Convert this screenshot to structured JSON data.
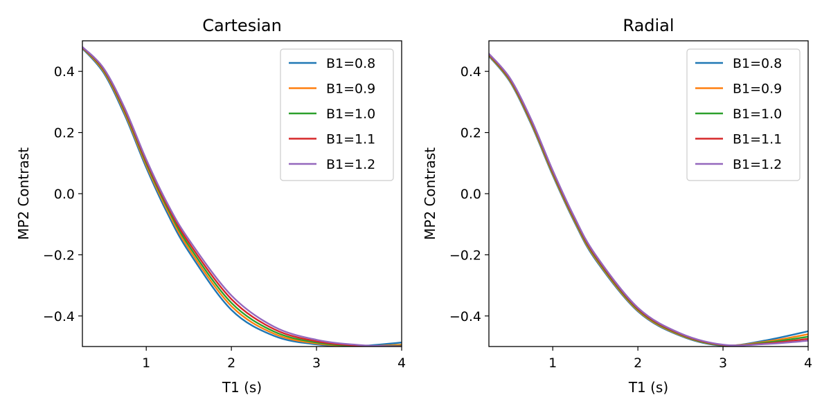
{
  "chart_data": [
    {
      "type": "line",
      "title": "Cartesian",
      "xlabel": "T1 (s)",
      "ylabel": "MP2 Contrast",
      "xlim": [
        0.25,
        4.0
      ],
      "ylim": [
        -0.5,
        0.5
      ],
      "xticks": [
        1,
        2,
        3,
        4
      ],
      "xtick_labels": [
        "1",
        "2",
        "3",
        "4"
      ],
      "yticks": [
        0.4,
        0.2,
        0.0,
        -0.2,
        -0.4
      ],
      "ytick_labels": [
        "0.4",
        "0.2",
        "0.0",
        "−0.2",
        "−0.4"
      ],
      "legend_position": "top-right",
      "x": [
        0.25,
        0.5,
        0.75,
        1.0,
        1.25,
        1.5,
        2.0,
        2.5,
        3.0,
        3.5,
        4.0
      ],
      "series": [
        {
          "name": "B1=0.8",
          "color": "#1f77b4",
          "values": [
            0.475,
            0.395,
            0.255,
            0.085,
            -0.065,
            -0.19,
            -0.38,
            -0.465,
            -0.493,
            -0.498,
            -0.487
          ]
        },
        {
          "name": "B1=0.9",
          "color": "#ff7f0e",
          "values": [
            0.477,
            0.4,
            0.262,
            0.093,
            -0.055,
            -0.18,
            -0.368,
            -0.458,
            -0.49,
            -0.499,
            -0.494
          ]
        },
        {
          "name": "B1=1.0",
          "color": "#2ca02c",
          "values": [
            0.478,
            0.404,
            0.268,
            0.1,
            -0.047,
            -0.17,
            -0.357,
            -0.451,
            -0.487,
            -0.499,
            -0.497
          ]
        },
        {
          "name": "B1=1.1",
          "color": "#d62728",
          "values": [
            0.479,
            0.407,
            0.273,
            0.106,
            -0.04,
            -0.16,
            -0.345,
            -0.443,
            -0.483,
            -0.497,
            -0.499
          ]
        },
        {
          "name": "B1=1.2",
          "color": "#9467bd",
          "values": [
            0.48,
            0.41,
            0.278,
            0.112,
            -0.033,
            -0.15,
            -0.333,
            -0.435,
            -0.478,
            -0.495,
            -0.5
          ]
        }
      ]
    },
    {
      "type": "line",
      "title": "Radial",
      "xlabel": "T1 (s)",
      "ylabel": "MP2 Contrast",
      "xlim": [
        0.25,
        4.0
      ],
      "ylim": [
        -0.5,
        0.5
      ],
      "xticks": [
        1,
        2,
        3,
        4
      ],
      "xtick_labels": [
        "1",
        "2",
        "3",
        "4"
      ],
      "yticks": [
        0.4,
        0.2,
        0.0,
        -0.2,
        -0.4
      ],
      "ytick_labels": [
        "0.4",
        "0.2",
        "0.0",
        "−0.2",
        "−0.4"
      ],
      "legend_position": "top-right",
      "x": [
        0.25,
        0.5,
        0.75,
        1.0,
        1.25,
        1.5,
        2.0,
        2.5,
        3.0,
        3.5,
        4.0
      ],
      "series": [
        {
          "name": "B1=0.8",
          "color": "#1f77b4",
          "values": [
            0.45,
            0.365,
            0.225,
            0.06,
            -0.09,
            -0.215,
            -0.385,
            -0.465,
            -0.497,
            -0.48,
            -0.45
          ]
        },
        {
          "name": "B1=0.9",
          "color": "#ff7f0e",
          "values": [
            0.452,
            0.368,
            0.229,
            0.064,
            -0.086,
            -0.211,
            -0.382,
            -0.463,
            -0.496,
            -0.484,
            -0.46
          ]
        },
        {
          "name": "B1=1.0",
          "color": "#2ca02c",
          "values": [
            0.454,
            0.371,
            0.233,
            0.068,
            -0.082,
            -0.207,
            -0.379,
            -0.461,
            -0.496,
            -0.487,
            -0.468
          ]
        },
        {
          "name": "B1=1.1",
          "color": "#d62728",
          "values": [
            0.456,
            0.374,
            0.237,
            0.072,
            -0.078,
            -0.203,
            -0.376,
            -0.459,
            -0.495,
            -0.49,
            -0.475
          ]
        },
        {
          "name": "B1=1.2",
          "color": "#9467bd",
          "values": [
            0.458,
            0.377,
            0.241,
            0.076,
            -0.074,
            -0.199,
            -0.373,
            -0.457,
            -0.494,
            -0.492,
            -0.481
          ]
        }
      ]
    }
  ]
}
